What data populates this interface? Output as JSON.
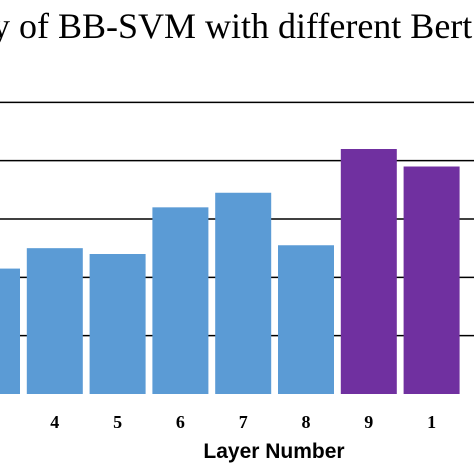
{
  "chart_data": {
    "type": "bar",
    "title": "y of BB-SVM with different Bert L",
    "xlabel": "Layer Number",
    "ylabel": "",
    "categories": [
      "",
      "4",
      "5",
      "6",
      "7",
      "8",
      "9",
      "1"
    ],
    "values": [
      2.15,
      2.5,
      2.4,
      3.2,
      3.45,
      2.55,
      4.2,
      3.9
    ],
    "colors": [
      "#5b9bd5",
      "#5b9bd5",
      "#5b9bd5",
      "#5b9bd5",
      "#5b9bd5",
      "#5b9bd5",
      "#7030a0",
      "#7030a0"
    ],
    "gridlines": [
      1,
      2,
      3,
      4,
      5
    ],
    "ylim": [
      0,
      6
    ],
    "grid": true,
    "legend": "none"
  }
}
